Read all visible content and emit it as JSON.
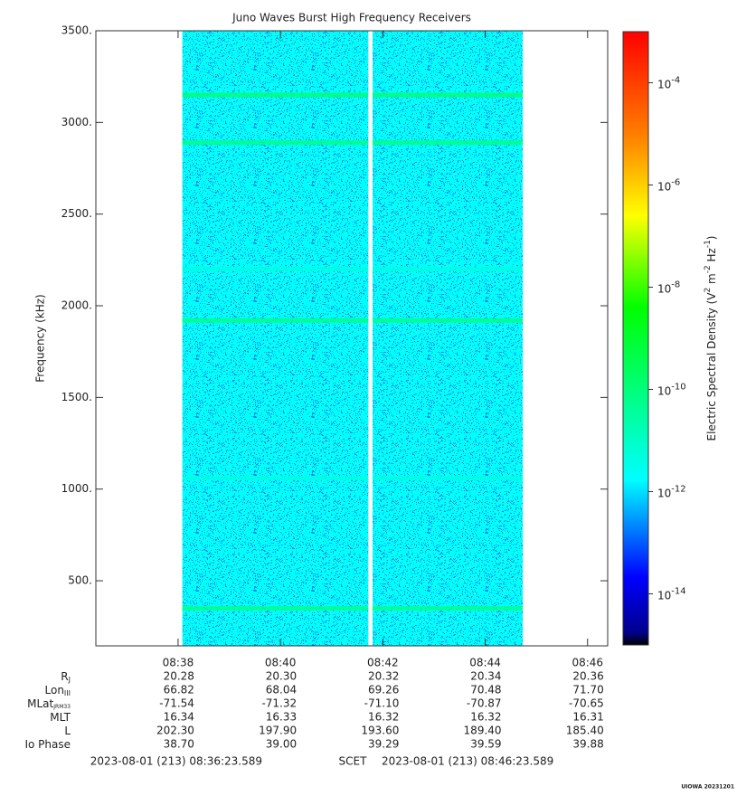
{
  "chart_data": {
    "type": "spectrogram",
    "title": "Juno Waves Burst High Frequency Receivers",
    "ylabel": "Frequency (kHz)",
    "colorbar_label": [
      "Electric Spectral Density (V",
      "2",
      " m",
      "-2",
      " Hz",
      "-1",
      ")"
    ],
    "colormap": "jet",
    "xlim": [
      "08:36:23.589",
      "08:46:23.589"
    ],
    "xticks": [
      "08:38",
      "08:40",
      "08:42",
      "08:44",
      "08:46"
    ],
    "ylim": [
      145,
      3500
    ],
    "yticks": [
      {
        "value": 500,
        "label": "500."
      },
      {
        "value": 1000,
        "label": "1000."
      },
      {
        "value": 1500,
        "label": "1500."
      },
      {
        "value": 2000,
        "label": "2000."
      },
      {
        "value": 2500,
        "label": "2500."
      },
      {
        "value": 3000,
        "label": "3000."
      },
      {
        "value": 3500,
        "label": "3500."
      }
    ],
    "zlim": [
      1e-15,
      0.001
    ],
    "zticks": [
      {
        "value": 1e-14,
        "label": "10-14"
      },
      {
        "value": 1e-12,
        "label": "10-12"
      },
      {
        "value": 1e-10,
        "label": "10-10"
      },
      {
        "value": 1e-08,
        "label": "10-8"
      },
      {
        "value": 1e-06,
        "label": "10-6"
      },
      {
        "value": 0.0001,
        "label": "10-4"
      }
    ],
    "segments": [
      {
        "start": "08:38:05",
        "end": "08:41:43"
      },
      {
        "start": "08:41:48",
        "end": "08:44:44"
      }
    ],
    "background_level": 2e-12,
    "emission_lines": [
      {
        "frequency": 3150,
        "level": 1e-10
      },
      {
        "frequency": 2890,
        "level": 6e-11
      },
      {
        "frequency": 1920,
        "level": 6e-11
      },
      {
        "frequency": 350,
        "level": 5e-11
      },
      {
        "frequency": 1060,
        "level": 4e-12
      },
      {
        "frequency": 2200,
        "level": 4e-12
      }
    ],
    "ephemeris": [
      {
        "label": "R",
        "sub": "J",
        "values": [
          "20.28",
          "20.30",
          "20.32",
          "20.34",
          "20.36"
        ]
      },
      {
        "label": "Lon",
        "sub": "III",
        "values": [
          "66.82",
          "68.04",
          "69.26",
          "70.48",
          "71.70"
        ]
      },
      {
        "label": "MLat",
        "sub": "JRM33",
        "values": [
          "-71.54",
          "-71.32",
          "-71.10",
          "-70.87",
          "-70.65"
        ]
      },
      {
        "label": "MLT",
        "sub": null,
        "values": [
          "16.34",
          "16.33",
          "16.32",
          "16.32",
          "16.31"
        ]
      },
      {
        "label": "L",
        "sub": null,
        "values": [
          "202.30",
          "197.90",
          "193.60",
          "189.40",
          "185.40"
        ]
      },
      {
        "label": "Io Phase",
        "sub": null,
        "values": [
          "38.70",
          "39.00",
          "39.29",
          "39.59",
          "39.88"
        ]
      }
    ],
    "footer": {
      "start": "2023-08-01 (213) 08:36:23.589",
      "center": "SCET",
      "end": "2023-08-01 (213) 08:46:23.589"
    },
    "credit": "UIOWA 20231201"
  }
}
